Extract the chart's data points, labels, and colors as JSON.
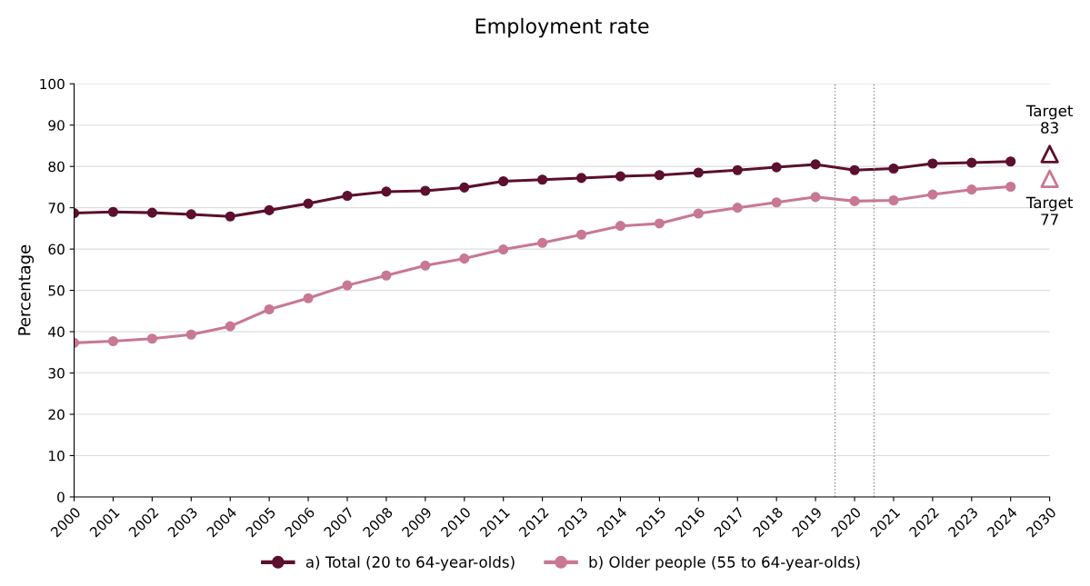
{
  "chart_data": {
    "type": "line",
    "title": "Employment rate",
    "ylabel": "Percentage",
    "categories": [
      "2000",
      "2001",
      "2002",
      "2003",
      "2004",
      "2005",
      "2006",
      "2007",
      "2008",
      "2009",
      "2010",
      "2011",
      "2012",
      "2013",
      "2014",
      "2015",
      "2016",
      "2017",
      "2018",
      "2019",
      "2020",
      "2021",
      "2022",
      "2023",
      "2024",
      "2030"
    ],
    "series": [
      {
        "name": "a) Total (20 to 64-year-olds)",
        "color": "#5c0f2e",
        "marker": "circle",
        "values": [
          68.7,
          69.0,
          68.8,
          68.4,
          67.9,
          69.4,
          71.0,
          72.9,
          73.9,
          74.1,
          74.9,
          76.4,
          76.8,
          77.2,
          77.6,
          77.9,
          78.5,
          79.1,
          79.8,
          80.5,
          79.1,
          79.5,
          80.7,
          80.9,
          81.2,
          null
        ]
      },
      {
        "name": "b) Older people (55 to 64-year-olds)",
        "color": "#c87893",
        "marker": "circle",
        "values": [
          37.3,
          37.7,
          38.3,
          39.3,
          41.3,
          45.4,
          48.1,
          51.2,
          53.6,
          56.0,
          57.7,
          59.9,
          61.5,
          63.5,
          65.6,
          66.2,
          68.6,
          70.0,
          71.3,
          72.6,
          71.6,
          71.8,
          73.2,
          74.4,
          75.1,
          null
        ]
      },
      {
        "type": "scatter",
        "color": "#5c0f2e",
        "marker": "triangle",
        "values": [
          null,
          null,
          null,
          null,
          null,
          null,
          null,
          null,
          null,
          null,
          null,
          null,
          null,
          null,
          null,
          null,
          null,
          null,
          null,
          null,
          null,
          null,
          null,
          null,
          null,
          83
        ]
      },
      {
        "type": "scatter",
        "color": "#c87893",
        "marker": "triangle",
        "values": [
          null,
          null,
          null,
          null,
          null,
          null,
          null,
          null,
          null,
          null,
          null,
          null,
          null,
          null,
          null,
          null,
          null,
          null,
          null,
          null,
          null,
          null,
          null,
          null,
          null,
          77
        ]
      }
    ],
    "annotations": [
      {
        "text": "Target\n83",
        "x": "2030",
        "y": 83
      },
      {
        "text": "Target\n77",
        "x": "2030",
        "y": 77
      }
    ],
    "ylim": [
      0,
      100
    ],
    "yticks": [
      0,
      10,
      20,
      30,
      40,
      50,
      60,
      70,
      80,
      90,
      100
    ],
    "grid": "y",
    "legend": "bottom"
  }
}
